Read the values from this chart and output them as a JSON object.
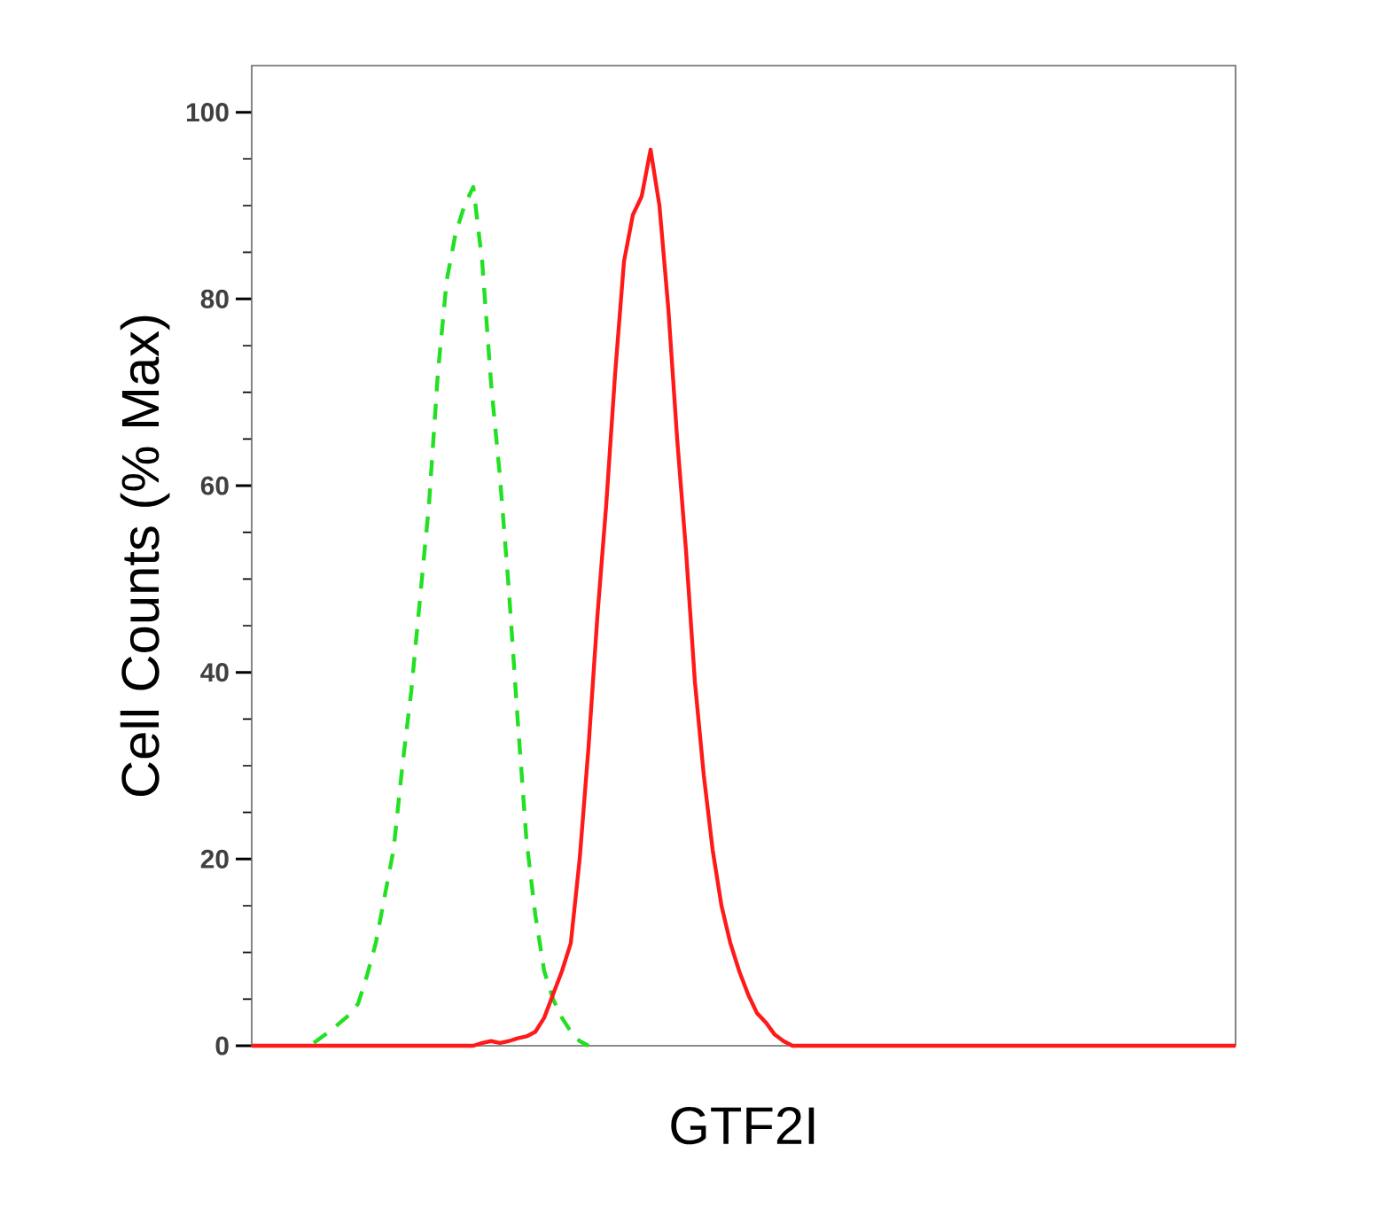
{
  "chart_data": {
    "type": "line",
    "xlabel": "GTF2I",
    "ylabel": "Cell Counts (% Max)",
    "categories": [
      null,
      null,
      null,
      null,
      null,
      null,
      null,
      null,
      null,
      null,
      null,
      null,
      null,
      null,
      null,
      null,
      null,
      null,
      null,
      null,
      null,
      null,
      null,
      null,
      null,
      null,
      null,
      null,
      null,
      null,
      null,
      null,
      null,
      null,
      null,
      null,
      null,
      null,
      null,
      null,
      null,
      null,
      null,
      null,
      null,
      null,
      null,
      null,
      null,
      null,
      null,
      null,
      null,
      null,
      null,
      null,
      null,
      null,
      null,
      null,
      null,
      null,
      null,
      null,
      null,
      null,
      null,
      null,
      null,
      null,
      null,
      null,
      null,
      null,
      null,
      null,
      null,
      null,
      null,
      null,
      null,
      null,
      null,
      null,
      null,
      null,
      null,
      null,
      null,
      null,
      null,
      null,
      null,
      null,
      null,
      null,
      null,
      null,
      null,
      null,
      null,
      null,
      null,
      null,
      null,
      null,
      null,
      null,
      null,
      null,
      null,
      null
    ],
    "series": [
      {
        "color": "#22e022",
        "line_style": "dashed",
        "values": [
          null,
          null,
          null,
          null,
          null,
          null,
          null,
          0.3,
          1,
          1.7,
          2.5,
          3.3,
          4.5,
          7.5,
          11,
          16,
          21,
          30,
          38,
          48,
          58,
          72,
          82,
          87,
          90,
          92,
          84,
          71,
          61,
          49,
          35,
          22,
          14,
          8,
          5,
          3,
          1.5,
          0.5,
          0,
          null,
          null,
          null,
          null,
          null,
          null,
          null,
          null,
          null,
          null,
          null,
          null,
          null,
          null,
          null,
          null,
          null,
          null,
          null,
          null,
          null,
          null,
          null,
          null,
          null,
          null,
          null,
          null,
          null,
          null,
          null,
          null,
          null,
          null,
          null,
          null,
          null,
          null,
          null,
          null,
          null,
          null,
          null,
          null,
          null,
          null,
          null,
          null,
          null,
          null,
          null,
          null,
          null,
          null,
          null,
          null,
          null,
          null,
          null,
          null,
          null,
          null,
          null,
          null,
          null,
          null,
          null,
          null,
          null,
          null,
          null,
          null,
          null
        ]
      },
      {
        "color": "#ff1a1a",
        "line_style": "solid",
        "values": [
          0,
          0,
          0,
          0,
          0,
          0,
          0,
          0,
          0,
          0,
          0,
          0,
          0,
          0,
          0,
          0,
          0,
          0,
          0,
          0,
          0,
          0,
          0,
          0,
          0,
          0,
          0.3,
          0.5,
          0.3,
          0.5,
          0.8,
          1,
          1.5,
          3,
          5.5,
          8,
          11,
          20,
          32,
          46,
          58,
          72,
          84,
          89,
          91,
          96,
          90,
          79,
          65,
          53,
          39,
          29,
          21,
          15,
          11,
          8,
          5.5,
          3.5,
          2.5,
          1.2,
          0.5,
          0,
          0,
          0,
          0,
          0,
          0,
          0,
          0,
          0,
          0,
          0,
          0,
          0,
          0,
          0,
          0,
          0,
          0,
          0,
          0,
          0,
          0,
          0,
          0,
          0,
          0,
          0,
          0,
          0,
          0,
          0,
          0,
          0,
          0,
          0,
          0,
          0,
          0,
          0,
          0,
          0,
          0,
          0,
          0,
          0,
          0,
          0,
          0,
          0,
          0,
          0
        ]
      }
    ],
    "ylim": [
      0,
      105
    ],
    "yticks": [
      0,
      20,
      40,
      60,
      80,
      100
    ],
    "tick_labels": "y",
    "marker": "none"
  }
}
